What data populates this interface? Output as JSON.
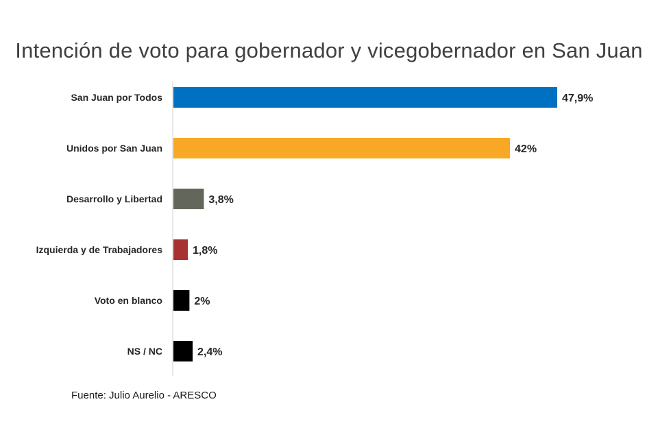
{
  "chart_data": {
    "type": "bar",
    "orientation": "horizontal",
    "title": "Intención de voto para gobernador y vicegobernador en San Juan",
    "categories": [
      "San Juan por Todos",
      "Unidos por San Juan",
      "Desarrollo y Libertad",
      "Izquierda y de Trabajadores",
      "Voto en blanco",
      "NS / NC"
    ],
    "values": [
      47.9,
      42,
      3.8,
      1.8,
      2,
      2.4
    ],
    "value_labels": [
      "47,9%",
      "42%",
      "3,8%",
      "1,8%",
      "2%",
      "2,4%"
    ],
    "colors": [
      "#0070c0",
      "#f9a825",
      "#63665a",
      "#a83232",
      "#000000",
      "#000000"
    ],
    "xlim": [
      0,
      50
    ],
    "grid": false,
    "legend": "none",
    "source": "Fuente: Julio Aurelio - ARESCO"
  }
}
